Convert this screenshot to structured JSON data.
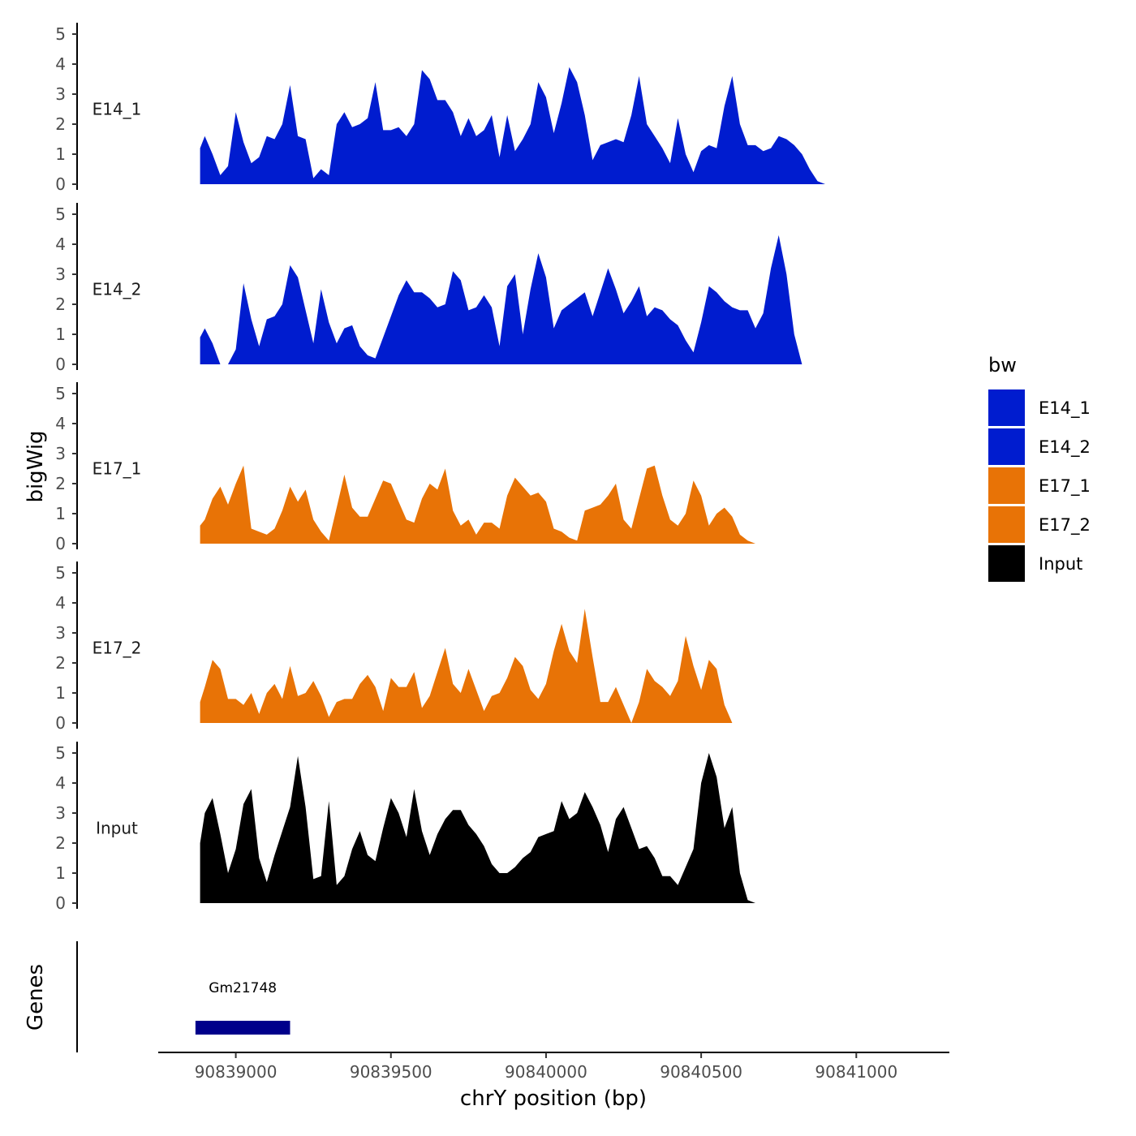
{
  "chart_data": {
    "type": "area",
    "title": "",
    "xlabel": "chrY position (bp)",
    "ylabel": "bigWig",
    "x_ticks": [
      90839000,
      90839500,
      90840000,
      90840500,
      90841000
    ],
    "x_tick_labels": [
      "90839000",
      "90839500",
      "90840000",
      "90840500",
      "90841000"
    ],
    "xlim": [
      90838750,
      90841300
    ],
    "ylim": [
      0,
      5
    ],
    "y_ticks": [
      0,
      1,
      2,
      3,
      4,
      5
    ],
    "y_tick_labels": [
      "0",
      "1",
      "2",
      "3",
      "4",
      "5"
    ],
    "x": [
      90838885,
      90838900,
      90838925,
      90838950,
      90838975,
      90839000,
      90839025,
      90839050,
      90839075,
      90839100,
      90839125,
      90839150,
      90839175,
      90839200,
      90839225,
      90839250,
      90839275,
      90839300,
      90839325,
      90839350,
      90839375,
      90839400,
      90839425,
      90839450,
      90839475,
      90839500,
      90839525,
      90839550,
      90839575,
      90839600,
      90839625,
      90839650,
      90839675,
      90839700,
      90839725,
      90839750,
      90839775,
      90839800,
      90839825,
      90839850,
      90839875,
      90839900,
      90839925,
      90839950,
      90839975,
      90840000,
      90840025,
      90840050,
      90840075,
      90840100,
      90840125,
      90840150,
      90840175,
      90840200,
      90840225,
      90840250,
      90840275,
      90840300,
      90840325,
      90840350,
      90840375,
      90840400,
      90840425,
      90840450,
      90840475,
      90840500,
      90840525,
      90840550,
      90840575,
      90840600,
      90840625,
      90840650,
      90840675,
      90840700,
      90840725,
      90840750,
      90840775,
      90840800,
      90840825,
      90840850,
      90840875,
      90840900,
      90840925
    ],
    "series": [
      {
        "name": "E14_1",
        "color": "#001ccf",
        "values": [
          1.2,
          1.6,
          1.0,
          0.3,
          0.6,
          2.4,
          1.4,
          0.7,
          0.9,
          1.6,
          1.5,
          2.0,
          3.3,
          1.6,
          1.5,
          0.2,
          0.5,
          0.3,
          2.0,
          2.4,
          1.9,
          2.0,
          2.2,
          3.4,
          1.8,
          1.8,
          1.9,
          1.6,
          2.0,
          3.8,
          3.5,
          2.8,
          2.8,
          2.4,
          1.6,
          2.2,
          1.6,
          1.8,
          2.3,
          0.9,
          2.3,
          1.1,
          1.5,
          2.0,
          3.4,
          2.9,
          1.7,
          2.7,
          3.9,
          3.4,
          2.3,
          0.8,
          1.3,
          1.4,
          1.5,
          1.4,
          2.3,
          3.6,
          2.0,
          1.6,
          1.2,
          0.7,
          2.2,
          1.0,
          0.4,
          1.1,
          1.3,
          1.2,
          2.6,
          3.6,
          2.0,
          1.3,
          1.3,
          1.1,
          1.2,
          1.6,
          1.5,
          1.3,
          1.0,
          0.5,
          0.1,
          0.0,
          0.0
        ]
      },
      {
        "name": "E14_2",
        "color": "#001ccf",
        "values": [
          0.9,
          1.2,
          0.7,
          0.0,
          0.0,
          0.5,
          2.7,
          1.5,
          0.6,
          1.5,
          1.6,
          2.0,
          3.3,
          2.9,
          1.8,
          0.7,
          2.5,
          1.4,
          0.7,
          1.2,
          1.3,
          0.6,
          0.3,
          0.2,
          0.9,
          1.6,
          2.3,
          2.8,
          2.4,
          2.4,
          2.2,
          1.9,
          2.0,
          3.1,
          2.8,
          1.8,
          1.9,
          2.3,
          1.9,
          0.6,
          2.6,
          3.0,
          1.0,
          2.5,
          3.7,
          2.9,
          1.2,
          1.8,
          2.0,
          2.2,
          2.4,
          1.6,
          2.4,
          3.2,
          2.5,
          1.7,
          2.1,
          2.6,
          1.6,
          1.9,
          1.8,
          1.5,
          1.3,
          0.8,
          0.4,
          1.4,
          2.6,
          2.4,
          2.1,
          1.9,
          1.8,
          1.8,
          1.2,
          1.7,
          3.2,
          4.3,
          3.0,
          1.0,
          0.0,
          0.0,
          0.0,
          0.0,
          0.0
        ]
      },
      {
        "name": "E17_1",
        "color": "#e87306",
        "values": [
          0.6,
          0.8,
          1.5,
          1.9,
          1.3,
          2.0,
          2.6,
          0.5,
          0.4,
          0.3,
          0.5,
          1.1,
          1.9,
          1.4,
          1.8,
          0.8,
          0.4,
          0.1,
          1.2,
          2.3,
          1.2,
          0.9,
          0.9,
          1.5,
          2.1,
          2.0,
          1.4,
          0.8,
          0.7,
          1.5,
          2.0,
          1.8,
          2.5,
          1.1,
          0.6,
          0.8,
          0.3,
          0.7,
          0.7,
          0.5,
          1.6,
          2.2,
          1.9,
          1.6,
          1.7,
          1.4,
          0.5,
          0.4,
          0.2,
          0.1,
          1.1,
          1.2,
          1.3,
          1.6,
          2.0,
          0.8,
          0.5,
          1.5,
          2.5,
          2.6,
          1.6,
          0.8,
          0.6,
          1.0,
          2.1,
          1.6,
          0.6,
          1.0,
          1.2,
          0.9,
          0.3,
          0.1,
          0.0,
          0.0,
          0.0,
          0.0,
          0.0,
          0.0,
          0.0,
          0.0,
          0.0,
          0.0,
          0.0
        ]
      },
      {
        "name": "E17_2",
        "color": "#e87306",
        "values": [
          0.7,
          1.2,
          2.1,
          1.8,
          0.8,
          0.8,
          0.6,
          1.0,
          0.3,
          1.0,
          1.3,
          0.8,
          1.9,
          0.9,
          1.0,
          1.4,
          0.9,
          0.2,
          0.7,
          0.8,
          0.8,
          1.3,
          1.6,
          1.2,
          0.4,
          1.5,
          1.2,
          1.2,
          1.7,
          0.5,
          0.9,
          1.7,
          2.5,
          1.3,
          1.0,
          1.8,
          1.1,
          0.4,
          0.9,
          1.0,
          1.5,
          2.2,
          1.9,
          1.1,
          0.8,
          1.3,
          2.4,
          3.3,
          2.4,
          2.0,
          3.8,
          2.2,
          0.7,
          0.7,
          1.2,
          0.6,
          0.0,
          0.7,
          1.8,
          1.4,
          1.2,
          0.9,
          1.4,
          2.9,
          1.9,
          1.1,
          2.1,
          1.8,
          0.6,
          0.0,
          0.0,
          0.0,
          0.0,
          0.0,
          0.0,
          0.0,
          0.0,
          0.0,
          0.0,
          0.0,
          0.0,
          0.0,
          0.0
        ]
      },
      {
        "name": "Input",
        "color": "#000000",
        "values": [
          2.0,
          3.0,
          3.5,
          2.3,
          1.0,
          1.8,
          3.3,
          3.8,
          1.5,
          0.7,
          1.6,
          2.4,
          3.2,
          4.9,
          3.2,
          0.8,
          0.9,
          3.4,
          0.6,
          0.9,
          1.8,
          2.4,
          1.6,
          1.4,
          2.5,
          3.5,
          3.0,
          2.2,
          3.8,
          2.4,
          1.6,
          2.3,
          2.8,
          3.1,
          3.1,
          2.6,
          2.3,
          1.9,
          1.3,
          1.0,
          1.0,
          1.2,
          1.5,
          1.7,
          2.2,
          2.3,
          2.4,
          3.4,
          2.8,
          3.0,
          3.7,
          3.2,
          2.6,
          1.7,
          2.8,
          3.2,
          2.5,
          1.8,
          1.9,
          1.5,
          0.9,
          0.9,
          0.6,
          1.2,
          1.8,
          4.0,
          5.0,
          4.2,
          2.5,
          3.2,
          1.0,
          0.1,
          0.0,
          0.0,
          0.0,
          0.0,
          0.0,
          0.0,
          0.0,
          0.0,
          0.0,
          0.0,
          0.0
        ]
      }
    ],
    "legend": {
      "title": "bw",
      "position": "right",
      "entries": [
        {
          "label": "E14_1",
          "color": "#001ccf"
        },
        {
          "label": "E14_2",
          "color": "#001ccf"
        },
        {
          "label": "E17_1",
          "color": "#e87306"
        },
        {
          "label": "E17_2",
          "color": "#e87306"
        },
        {
          "label": "Input",
          "color": "#000000"
        }
      ]
    },
    "genes_track": {
      "title": "Genes",
      "genes": [
        {
          "name": "Gm21748",
          "start": 90838870,
          "end": 90839175,
          "color": "#00008b"
        }
      ]
    }
  }
}
